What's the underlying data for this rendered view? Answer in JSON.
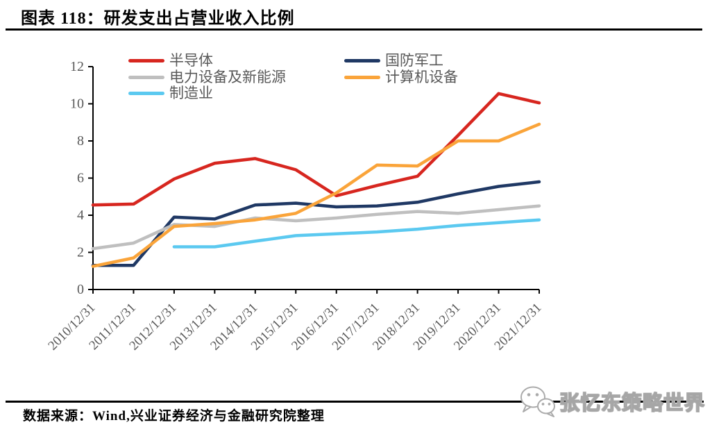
{
  "header": {
    "title": "图表 118：研发支出占营业收入比例"
  },
  "chart_data": {
    "type": "line",
    "title": "研发支出占营业收入比例",
    "categories": [
      "2010/12/31",
      "2011/12/31",
      "2012/12/31",
      "2013/12/31",
      "2014/12/31",
      "2015/12/31",
      "2016/12/31",
      "2017/12/31",
      "2018/12/31",
      "2019/12/31",
      "2020/12/31",
      "2021/12/31"
    ],
    "series": [
      {
        "name": "半导体",
        "color": "#D7261F",
        "values": [
          4.55,
          4.6,
          5.95,
          6.8,
          7.05,
          6.45,
          5.05,
          5.6,
          6.1,
          8.3,
          10.55,
          10.05
        ]
      },
      {
        "name": "国防军工",
        "color": "#1F3864",
        "values": [
          1.3,
          1.3,
          3.9,
          3.8,
          4.55,
          4.65,
          4.45,
          4.5,
          4.7,
          5.15,
          5.55,
          5.8
        ]
      },
      {
        "name": "电力设备及新能源",
        "color": "#BFBFBF",
        "values": [
          2.2,
          2.5,
          3.5,
          3.4,
          3.85,
          3.7,
          3.85,
          4.05,
          4.2,
          4.1,
          4.3,
          4.5
        ]
      },
      {
        "name": "计算机设备",
        "color": "#FAA43A",
        "values": [
          1.25,
          1.7,
          3.4,
          3.55,
          3.75,
          4.1,
          5.2,
          6.7,
          6.65,
          8.0,
          8.0,
          8.9
        ]
      },
      {
        "name": "制造业",
        "color": "#5BC9F0",
        "values": [
          null,
          null,
          2.3,
          2.3,
          2.6,
          2.9,
          3.0,
          3.1,
          3.25,
          3.45,
          3.6,
          3.75
        ]
      }
    ],
    "ylim": [
      0,
      12
    ],
    "yticks": [
      0,
      2,
      4,
      6,
      8,
      10,
      12
    ],
    "grid": false,
    "legend_position": "top-left",
    "axis_color": "#000000",
    "tick_label_color": "#595959"
  },
  "footer": {
    "source": "数据来源：Wind,兴业证券经济与金融研究院整理",
    "watermark": "张忆东策略世界"
  }
}
